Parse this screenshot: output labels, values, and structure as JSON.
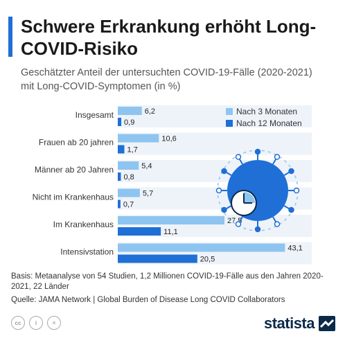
{
  "header": {
    "title": "Schwere Erkrankung erhöht Long-COVID-Risiko",
    "subtitle": "Geschätzter Anteil der untersuchten COVID-19-Fälle (2020-2021) mit Long-COVID-Symptomen (in %)"
  },
  "chart_data": {
    "type": "bar",
    "orientation": "horizontal",
    "categories": [
      "Insgesamt",
      "Frauen ab 20 jahren",
      "Männer ab 20 Jahren",
      "Nicht im Krankenhaus",
      "Im Krankenhaus",
      "Intensivstation"
    ],
    "series": [
      {
        "name": "Nach 3 Monaten",
        "values": [
          6.2,
          10.6,
          5.4,
          5.7,
          27.5,
          43.1
        ],
        "labels": [
          "6,2",
          "10,6",
          "5,4",
          "5,7",
          "27,5",
          "43,1"
        ],
        "color": "#8ec4f0"
      },
      {
        "name": "Nach 12 Monaten",
        "values": [
          0.9,
          1.7,
          0.8,
          0.7,
          11.1,
          20.5
        ],
        "labels": [
          "0,9",
          "1,7",
          "0,8",
          "0,7",
          "11,1",
          "20,5"
        ],
        "color": "#1f6fd6"
      }
    ],
    "xlim": [
      0,
      50
    ],
    "legend_position": "top-right",
    "row_background": "#eef3f9",
    "grid": false
  },
  "footer": {
    "basis": "Basis: Metaanalyse von 54 Studien, 1,2 Millionen COVID-19-Fälle aus den Jahren 2020-2021, 22 Länder",
    "source": "Quelle: JAMA Network | Global Burden of Disease Long COVID Collaborators",
    "license_icons": [
      "cc-icon",
      "by-icon",
      "nd-icon"
    ]
  },
  "brand": {
    "name": "statista",
    "color": "#0b2a4a"
  },
  "accent_color": "#1f6fd6"
}
